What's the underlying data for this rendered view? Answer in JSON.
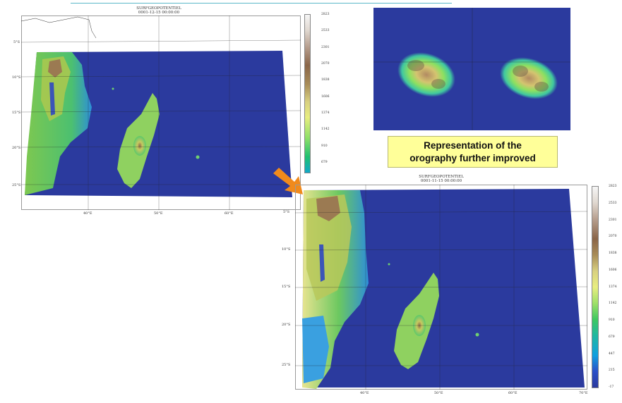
{
  "caption": {
    "line1": "Representation of the",
    "line2": "orography further improved"
  },
  "map_left": {
    "title_line1": "SURFGEOPOTENTIEL",
    "title_line2": "0001-12-15 00:00:00",
    "lat_labels": [
      "5°S",
      "10°S",
      "15°S",
      "20°S",
      "25°S"
    ],
    "lon_labels": [
      "40°E",
      "50°E",
      "60°E"
    ],
    "colorbar_ticks": [
      "2823",
      "2533",
      "2301",
      "2070",
      "1838",
      "1606",
      "1374",
      "1142",
      "910",
      "679"
    ]
  },
  "map_right": {
    "title_line1": "SURFGEOPOTENTIEL",
    "title_line2": "0001-11-15 00:00:00",
    "lat_labels": [
      "5°S",
      "10°S",
      "15°S",
      "20°S",
      "25°S"
    ],
    "lon_labels": [
      "40°E",
      "50°E",
      "60°E",
      "70°E"
    ],
    "colorbar_ticks": [
      "2823",
      "2533",
      "2301",
      "2070",
      "1838",
      "1606",
      "1374",
      "1142",
      "910",
      "679",
      "447",
      "215",
      "-17"
    ]
  },
  "colors": {
    "ocean": "#2b3a9e",
    "arrow": "#f08a1c",
    "accent_line": "#5bb8c8"
  }
}
